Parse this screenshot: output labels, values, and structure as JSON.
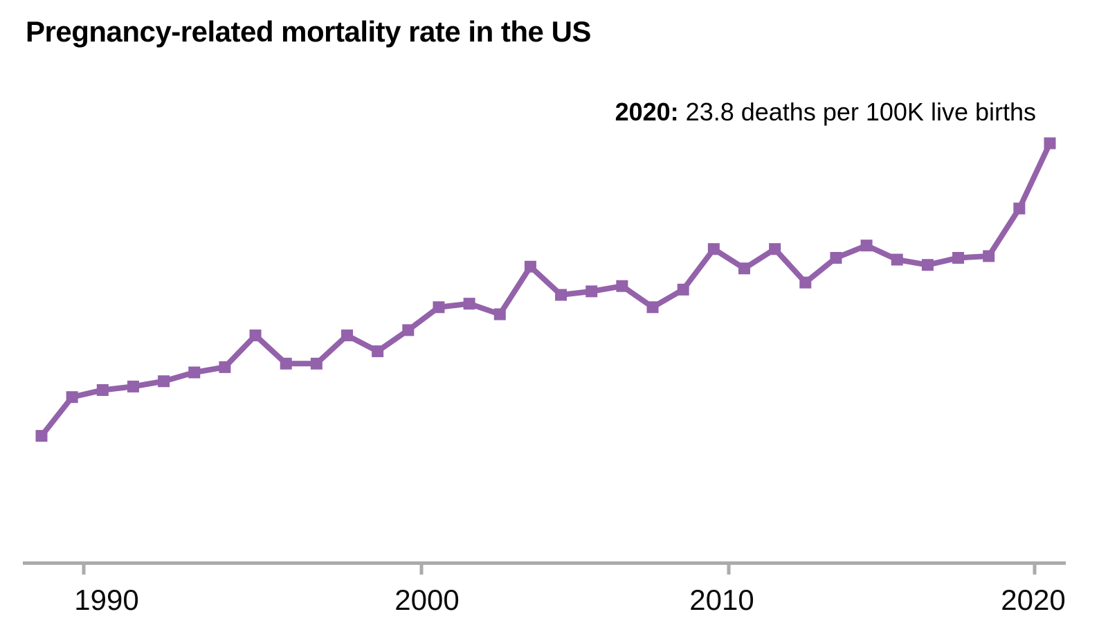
{
  "header": {
    "title": "Pregnancy-related mortality rate in the US"
  },
  "annotation": {
    "year": "2020:",
    "text": "23.8 deaths per 100K live births"
  },
  "chart_data": {
    "type": "line",
    "title": "Pregnancy-related mortality rate in the US",
    "x": [
      1987,
      1988,
      1989,
      1990,
      1991,
      1992,
      1993,
      1994,
      1995,
      1996,
      1997,
      1998,
      1999,
      2000,
      2001,
      2002,
      2003,
      2004,
      2005,
      2006,
      2007,
      2008,
      2009,
      2010,
      2011,
      2012,
      2013,
      2014,
      2015,
      2016,
      2017,
      2018,
      2019,
      2020
    ],
    "values": [
      7.2,
      9.4,
      9.8,
      10.0,
      10.3,
      10.8,
      11.1,
      12.9,
      11.3,
      11.3,
      12.9,
      12.0,
      13.2,
      14.5,
      14.7,
      14.1,
      16.8,
      15.2,
      15.4,
      15.7,
      14.5,
      15.5,
      17.8,
      16.7,
      17.8,
      15.9,
      17.3,
      18.0,
      17.2,
      16.9,
      17.3,
      17.4,
      20.1,
      23.8
    ],
    "unit": "deaths per 100K live births",
    "annotation_text": "2020: 23.8 deaths per 100K live births",
    "xlabel": "",
    "ylabel": "",
    "xticks": [
      "1990",
      "2000",
      "2010",
      "2020"
    ],
    "ylim": [
      0,
      26
    ],
    "grid": false,
    "legend_position": "none",
    "line_color": "#9362AA",
    "marker": "square",
    "axis_color": "#ABABAB"
  }
}
